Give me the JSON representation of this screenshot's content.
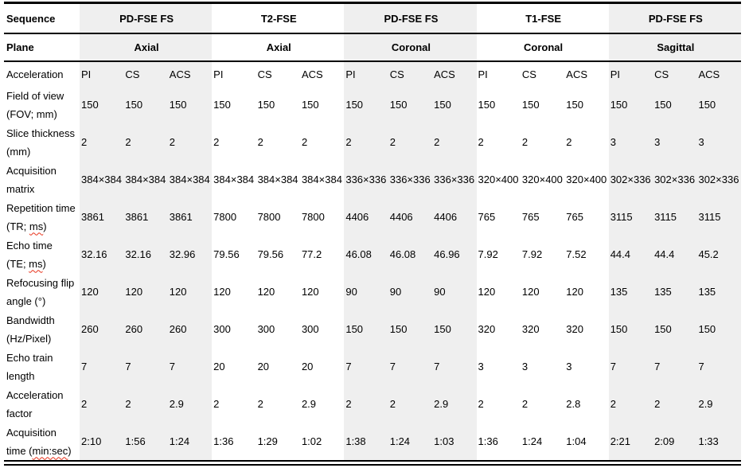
{
  "colors": {
    "shaded_column_bg": "#efefef",
    "rule": "#000000",
    "spellcheck_underline": "#e8311a"
  },
  "table": {
    "sequence_label": "Sequence",
    "plane_label": "Plane",
    "acceleration_label": "Acceleration",
    "acceleration_columns": [
      "PI",
      "CS",
      "ACS"
    ],
    "groups": [
      {
        "sequence": "PD-FSE FS",
        "plane": "Axial",
        "shaded": true
      },
      {
        "sequence": "T2-FSE",
        "plane": "Axial",
        "shaded": false
      },
      {
        "sequence": "PD-FSE FS",
        "plane": "Coronal",
        "shaded": true
      },
      {
        "sequence": "T1-FSE",
        "plane": "Coronal",
        "shaded": false
      },
      {
        "sequence": "PD-FSE FS",
        "plane": "Sagittal",
        "shaded": true
      }
    ],
    "rows": [
      {
        "label": [
          [
            {
              "t": "Field of view"
            }
          ],
          [
            {
              "t": "(FOV; mm)"
            }
          ]
        ],
        "values": [
          "150",
          "150",
          "150",
          "150",
          "150",
          "150",
          "150",
          "150",
          "150",
          "150",
          "150",
          "150",
          "150",
          "150",
          "150"
        ]
      },
      {
        "label": [
          [
            {
              "t": "Slice thickness"
            }
          ],
          [
            {
              "t": "(mm)"
            }
          ]
        ],
        "values": [
          "2",
          "2",
          "2",
          "2",
          "2",
          "2",
          "2",
          "2",
          "2",
          "2",
          "2",
          "2",
          "3",
          "3",
          "3"
        ]
      },
      {
        "label": [
          [
            {
              "t": "Acquisition"
            }
          ],
          [
            {
              "t": "matrix"
            }
          ]
        ],
        "values": [
          "384×384",
          "384×384",
          "384×384",
          "384×384",
          "384×384",
          "384×384",
          "336×336",
          "336×336",
          "336×336",
          "320×400",
          "320×400",
          "320×400",
          "302×336",
          "302×336",
          "302×336"
        ]
      },
      {
        "label": [
          [
            {
              "t": "Repetition time"
            }
          ],
          [
            {
              "t": "(TR; "
            },
            {
              "t": "ms",
              "sp": true
            },
            {
              "t": ")"
            }
          ]
        ],
        "values": [
          "3861",
          "3861",
          "3861",
          "7800",
          "7800",
          "7800",
          "4406",
          "4406",
          "4406",
          "765",
          "765",
          "765",
          "3115",
          "3115",
          "3115"
        ]
      },
      {
        "label": [
          [
            {
              "t": "Echo time"
            }
          ],
          [
            {
              "t": "(TE; "
            },
            {
              "t": "ms",
              "sp": true
            },
            {
              "t": ")"
            }
          ]
        ],
        "values": [
          "32.16",
          "32.16",
          "32.96",
          "79.56",
          "79.56",
          "77.2",
          "46.08",
          "46.08",
          "46.96",
          "7.92",
          "7.92",
          "7.52",
          "44.4",
          "44.4",
          "45.2"
        ]
      },
      {
        "label": [
          [
            {
              "t": "Refocusing flip"
            }
          ],
          [
            {
              "t": "angle (°)"
            }
          ]
        ],
        "values": [
          "120",
          "120",
          "120",
          "120",
          "120",
          "120",
          "90",
          "90",
          "90",
          "120",
          "120",
          "120",
          "135",
          "135",
          "135"
        ]
      },
      {
        "label": [
          [
            {
              "t": "Bandwidth"
            }
          ],
          [
            {
              "t": "(Hz/Pixel)"
            }
          ]
        ],
        "values": [
          "260",
          "260",
          "260",
          "300",
          "300",
          "300",
          "150",
          "150",
          "150",
          "320",
          "320",
          "320",
          "150",
          "150",
          "150"
        ]
      },
      {
        "label": [
          [
            {
              "t": "Echo train"
            }
          ],
          [
            {
              "t": "length"
            }
          ]
        ],
        "values": [
          "7",
          "7",
          "7",
          "20",
          "20",
          "20",
          "7",
          "7",
          "7",
          "3",
          "3",
          "3",
          "7",
          "7",
          "7"
        ]
      },
      {
        "label": [
          [
            {
              "t": "Acceleration"
            }
          ],
          [
            {
              "t": "factor"
            }
          ]
        ],
        "values": [
          "2",
          "2",
          "2.9",
          "2",
          "2",
          "2.9",
          "2",
          "2",
          "2.9",
          "2",
          "2",
          "2.8",
          "2",
          "2",
          "2.9"
        ]
      },
      {
        "label": [
          [
            {
              "t": "Acquisition"
            }
          ],
          [
            {
              "t": "time ("
            },
            {
              "t": "min:sec",
              "sp": true
            },
            {
              "t": ")"
            }
          ]
        ],
        "values": [
          "2:10",
          "1:56",
          "1:24",
          "1:36",
          "1:29",
          "1:02",
          "1:38",
          "1:24",
          "1:03",
          "1:36",
          "1:24",
          "1:04",
          "2:21",
          "2:09",
          "1:33"
        ]
      }
    ]
  }
}
